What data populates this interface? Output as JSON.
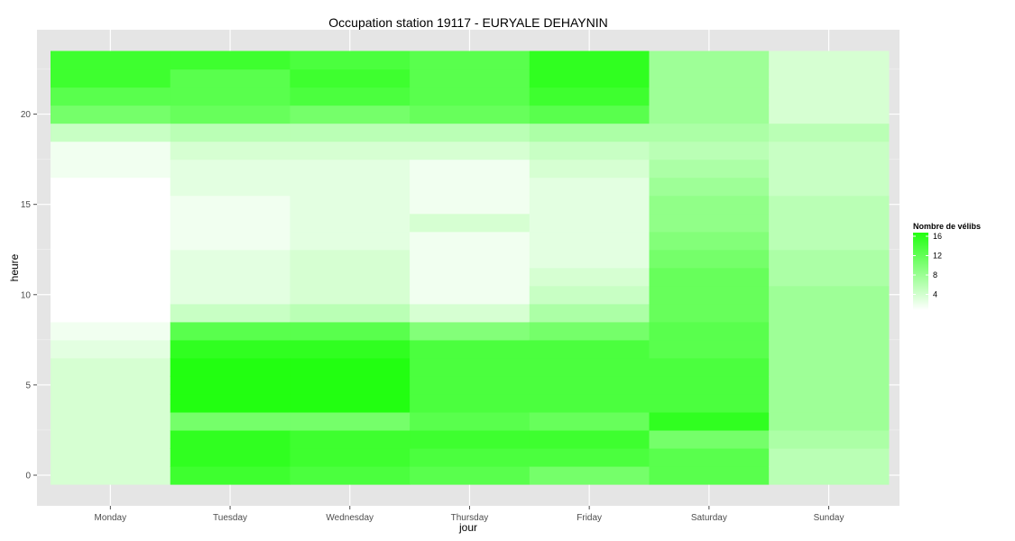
{
  "chart_data": {
    "type": "heatmap",
    "title": "Occupation station 19117 - EURYALE DEHAYNIN",
    "xlabel": "jour",
    "ylabel": "heure",
    "categories": [
      "Monday",
      "Tuesday",
      "Wednesday",
      "Thursday",
      "Friday",
      "Saturday",
      "Sunday"
    ],
    "y_values": [
      0,
      1,
      2,
      3,
      4,
      5,
      6,
      7,
      8,
      9,
      10,
      11,
      12,
      13,
      14,
      15,
      16,
      17,
      18,
      19,
      20,
      21,
      22,
      23
    ],
    "y_ticks": [
      0,
      5,
      10,
      15,
      20
    ],
    "ylim": [
      -0.5,
      23.5
    ],
    "grid": true,
    "legend": {
      "title": "Nombre de vélibs",
      "placement": "right",
      "breaks": [
        4,
        8,
        12,
        16
      ],
      "low": 0,
      "high": 16,
      "low_color": "#ffffff",
      "high_color": "#22ff11"
    },
    "colors": {
      "panel": "#e5e5e5",
      "grid": "#ffffff"
    },
    "values": [
      [
        3,
        3,
        3,
        3,
        3,
        3,
        3,
        2,
        1,
        0,
        0,
        0,
        0,
        0,
        0,
        0,
        0,
        1,
        1,
        4,
        10,
        12,
        14,
        14
      ],
      [
        14,
        15,
        15,
        10,
        18,
        18,
        18,
        15,
        12,
        4,
        2,
        2,
        2,
        1,
        1,
        1,
        2,
        2,
        3,
        5,
        11,
        12,
        12,
        14
      ],
      [
        13,
        14,
        14,
        10,
        18,
        18,
        18,
        15,
        12,
        5,
        3,
        3,
        3,
        2,
        2,
        2,
        2,
        2,
        3,
        5,
        10,
        13,
        14,
        13
      ],
      [
        12,
        13,
        14,
        12,
        13,
        13,
        13,
        13,
        9,
        3,
        1,
        1,
        1,
        1,
        3,
        1,
        1,
        1,
        3,
        5,
        11,
        12,
        12,
        12
      ],
      [
        10,
        13,
        14,
        11,
        13,
        13,
        13,
        13,
        10,
        6,
        4,
        3,
        2,
        2,
        2,
        2,
        2,
        3,
        4,
        6,
        12,
        14,
        15,
        15
      ],
      [
        12,
        12,
        10,
        15,
        13,
        13,
        13,
        12,
        12,
        11,
        11,
        11,
        10,
        9,
        8,
        8,
        7,
        6,
        5,
        6,
        7,
        7,
        7,
        7
      ],
      [
        5,
        5,
        6,
        7,
        7,
        7,
        7,
        7,
        7,
        7,
        7,
        6,
        6,
        5,
        5,
        5,
        4,
        4,
        4,
        5,
        3,
        3,
        3,
        3
      ]
    ]
  }
}
